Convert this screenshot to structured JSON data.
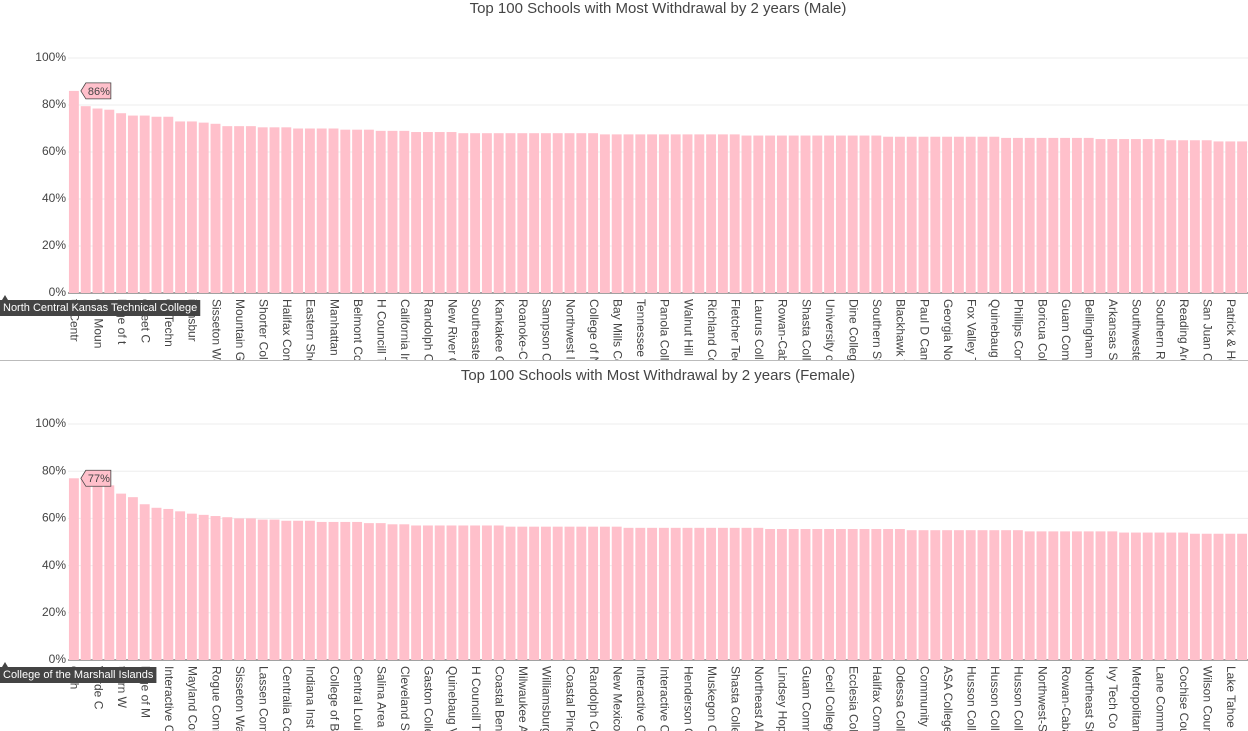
{
  "chart_data": [
    {
      "type": "bar",
      "title": "Top 100 Schools with Most Withdrawal by 2 years (Male)",
      "color": "#ffc0cb",
      "grid": true,
      "ylim": [
        0,
        100
      ],
      "yticks": [
        {
          "value": 0,
          "label": "0%"
        },
        {
          "value": 20,
          "label": "20%"
        },
        {
          "value": 40,
          "label": "40%"
        },
        {
          "value": 60,
          "label": "60%"
        },
        {
          "value": 80,
          "label": "80%"
        },
        {
          "value": 100,
          "label": "100%"
        }
      ],
      "categories": [
        "th Centr",
        null,
        "dle Moun",
        null,
        "llege of t",
        null,
        "ckfeet C",
        null,
        "es Techn",
        null,
        "iamsbur",
        null,
        "Sisseton Wa",
        null,
        "Mountain G",
        null,
        "Shorter Col",
        null,
        "Halifax Con",
        null,
        "Eastern Sho",
        null,
        "Manhattan",
        null,
        "Belmont Co",
        null,
        "H Councill T",
        null,
        "California In",
        null,
        "Randolph C",
        null,
        "New River C",
        null,
        "Southeaste",
        null,
        "Kankakee C",
        null,
        "Roanoke-C",
        null,
        "Sampson C",
        null,
        "Northwest I",
        null,
        "College of N",
        null,
        "Bay Mills Co",
        null,
        "Tennessee C",
        null,
        "Panola Colle",
        null,
        "Walnut Hill",
        null,
        "Richland Co",
        null,
        "Fletcher Tec",
        null,
        "Laurus Coll",
        null,
        "Rowan-Cab",
        null,
        "Shasta Colle",
        null,
        "University o",
        null,
        "Dine Colleg",
        null,
        "Southern St",
        null,
        "Blackhawk T",
        null,
        "Paul D Cam",
        null,
        "Georgia No",
        null,
        "Fox Valley T",
        null,
        "Quinebaug",
        null,
        "Phillips Com",
        null,
        "Boricua Coll",
        null,
        "Guam Com",
        null,
        "Bellingham",
        null,
        "Arkansas St",
        null,
        "Southweste",
        null,
        "Southern R",
        null,
        "Reading Are",
        null,
        "San Juan C",
        null,
        "Patrick & He",
        null
      ],
      "values": [
        86,
        79.5,
        78.5,
        78,
        76.5,
        75.5,
        75.5,
        75,
        75,
        73,
        73,
        72.5,
        72,
        71,
        71,
        71,
        70.5,
        70.5,
        70.5,
        70,
        70,
        70,
        70,
        69.5,
        69.5,
        69.5,
        69,
        69,
        69,
        68.5,
        68.5,
        68.5,
        68.5,
        68,
        68,
        68,
        68,
        68,
        68,
        68,
        68,
        68,
        68,
        68,
        68,
        67.5,
        67.5,
        67.5,
        67.5,
        67.5,
        67.5,
        67.5,
        67.5,
        67.5,
        67.5,
        67.5,
        67.5,
        67,
        67,
        67,
        67,
        67,
        67,
        67,
        67,
        67,
        67,
        67,
        67,
        66.5,
        66.5,
        66.5,
        66.5,
        66.5,
        66.5,
        66.5,
        66.5,
        66.5,
        66.5,
        66,
        66,
        66,
        66,
        66,
        66,
        66,
        66,
        65.5,
        65.5,
        65.5,
        65.5,
        65.5,
        65.5,
        65,
        65,
        65,
        65,
        64.5,
        64.5,
        64.5
      ],
      "hover": {
        "value": 86,
        "label": "86%",
        "category": "North Central Kansas Technical College"
      }
    },
    {
      "type": "bar",
      "title": "Top 100 Schools with Most Withdrawal by 2 years (Female)",
      "color": "#ffc0cb",
      "grid": true,
      "ylim": [
        0,
        100
      ],
      "yticks": [
        {
          "value": 0,
          "label": "0%"
        },
        {
          "value": 20,
          "label": "20%"
        },
        {
          "value": 40,
          "label": "40%"
        },
        {
          "value": 60,
          "label": "60%"
        },
        {
          "value": 80,
          "label": "80%"
        },
        {
          "value": 100,
          "label": "100%"
        }
      ],
      "categories": [
        "of th",
        null,
        "Verde C",
        null,
        "thern W",
        null,
        "llege of M",
        null,
        "Interactive C",
        null,
        "Mayland Com",
        null,
        "Rogue Comm",
        null,
        "Sisseton Wa",
        null,
        "Lassen Com",
        null,
        "Centralia Co",
        null,
        "Indiana Inst",
        null,
        "College of B",
        null,
        "Central Loui",
        null,
        "Salina Area",
        null,
        "Cleveland St",
        null,
        "Gaston Colle",
        null,
        "Quinebaug V",
        null,
        "H Councill T",
        null,
        "Coastal Bend",
        null,
        "Milwaukee A",
        null,
        "Williamsburg",
        null,
        "Coastal Pine",
        null,
        "Randolph Co",
        null,
        "New Mexico",
        null,
        "Interactive C",
        null,
        "Interactive C",
        null,
        "Henderson C",
        null,
        "Muskegon C",
        null,
        "Shasta Colle",
        null,
        "Northeast Al",
        null,
        "Lindsey Hop",
        null,
        "Guam Comm",
        null,
        "Cecil College",
        null,
        "Ecclesia Coll",
        null,
        "Halifax Com",
        null,
        "Odessa Coll",
        null,
        "Community",
        null,
        "ASA College",
        null,
        "Husson Coll",
        null,
        "Husson Coll",
        null,
        "Husson Coll",
        null,
        "Northwest-S",
        null,
        "Rowan-Caba",
        null,
        "Northeast St",
        null,
        "Ivy Tech Co",
        null,
        "Metropolitan",
        null,
        "Lane Comm",
        null,
        "Cochise Cou",
        null,
        "Wilson Coun",
        null,
        "Lake Tahoe",
        null
      ],
      "values": [
        77,
        76.5,
        76,
        74,
        70.5,
        69,
        66,
        64.5,
        64,
        63,
        62,
        61.5,
        61,
        60.5,
        60,
        60,
        59.5,
        59.5,
        59,
        59,
        59,
        58.5,
        58.5,
        58.5,
        58.5,
        58,
        58,
        57.5,
        57.5,
        57,
        57,
        57,
        57,
        57,
        57,
        57,
        57,
        56.5,
        56.5,
        56.5,
        56.5,
        56.5,
        56.5,
        56.5,
        56.5,
        56.5,
        56.5,
        56,
        56,
        56,
        56,
        56,
        56,
        56,
        56,
        56,
        56,
        56,
        56,
        55.5,
        55.5,
        55.5,
        55.5,
        55.5,
        55.5,
        55.5,
        55.5,
        55.5,
        55.5,
        55.5,
        55.5,
        55,
        55,
        55,
        55,
        55,
        55,
        55,
        55,
        55,
        55,
        54.5,
        54.5,
        54.5,
        54.5,
        54.5,
        54.5,
        54.5,
        54.5,
        54,
        54,
        54,
        54,
        54,
        54,
        53.5,
        53.5,
        53.5,
        53.5,
        53.5
      ],
      "hover": {
        "value": 77,
        "label": "77%",
        "category": "College of the Marshall Islands"
      }
    }
  ]
}
